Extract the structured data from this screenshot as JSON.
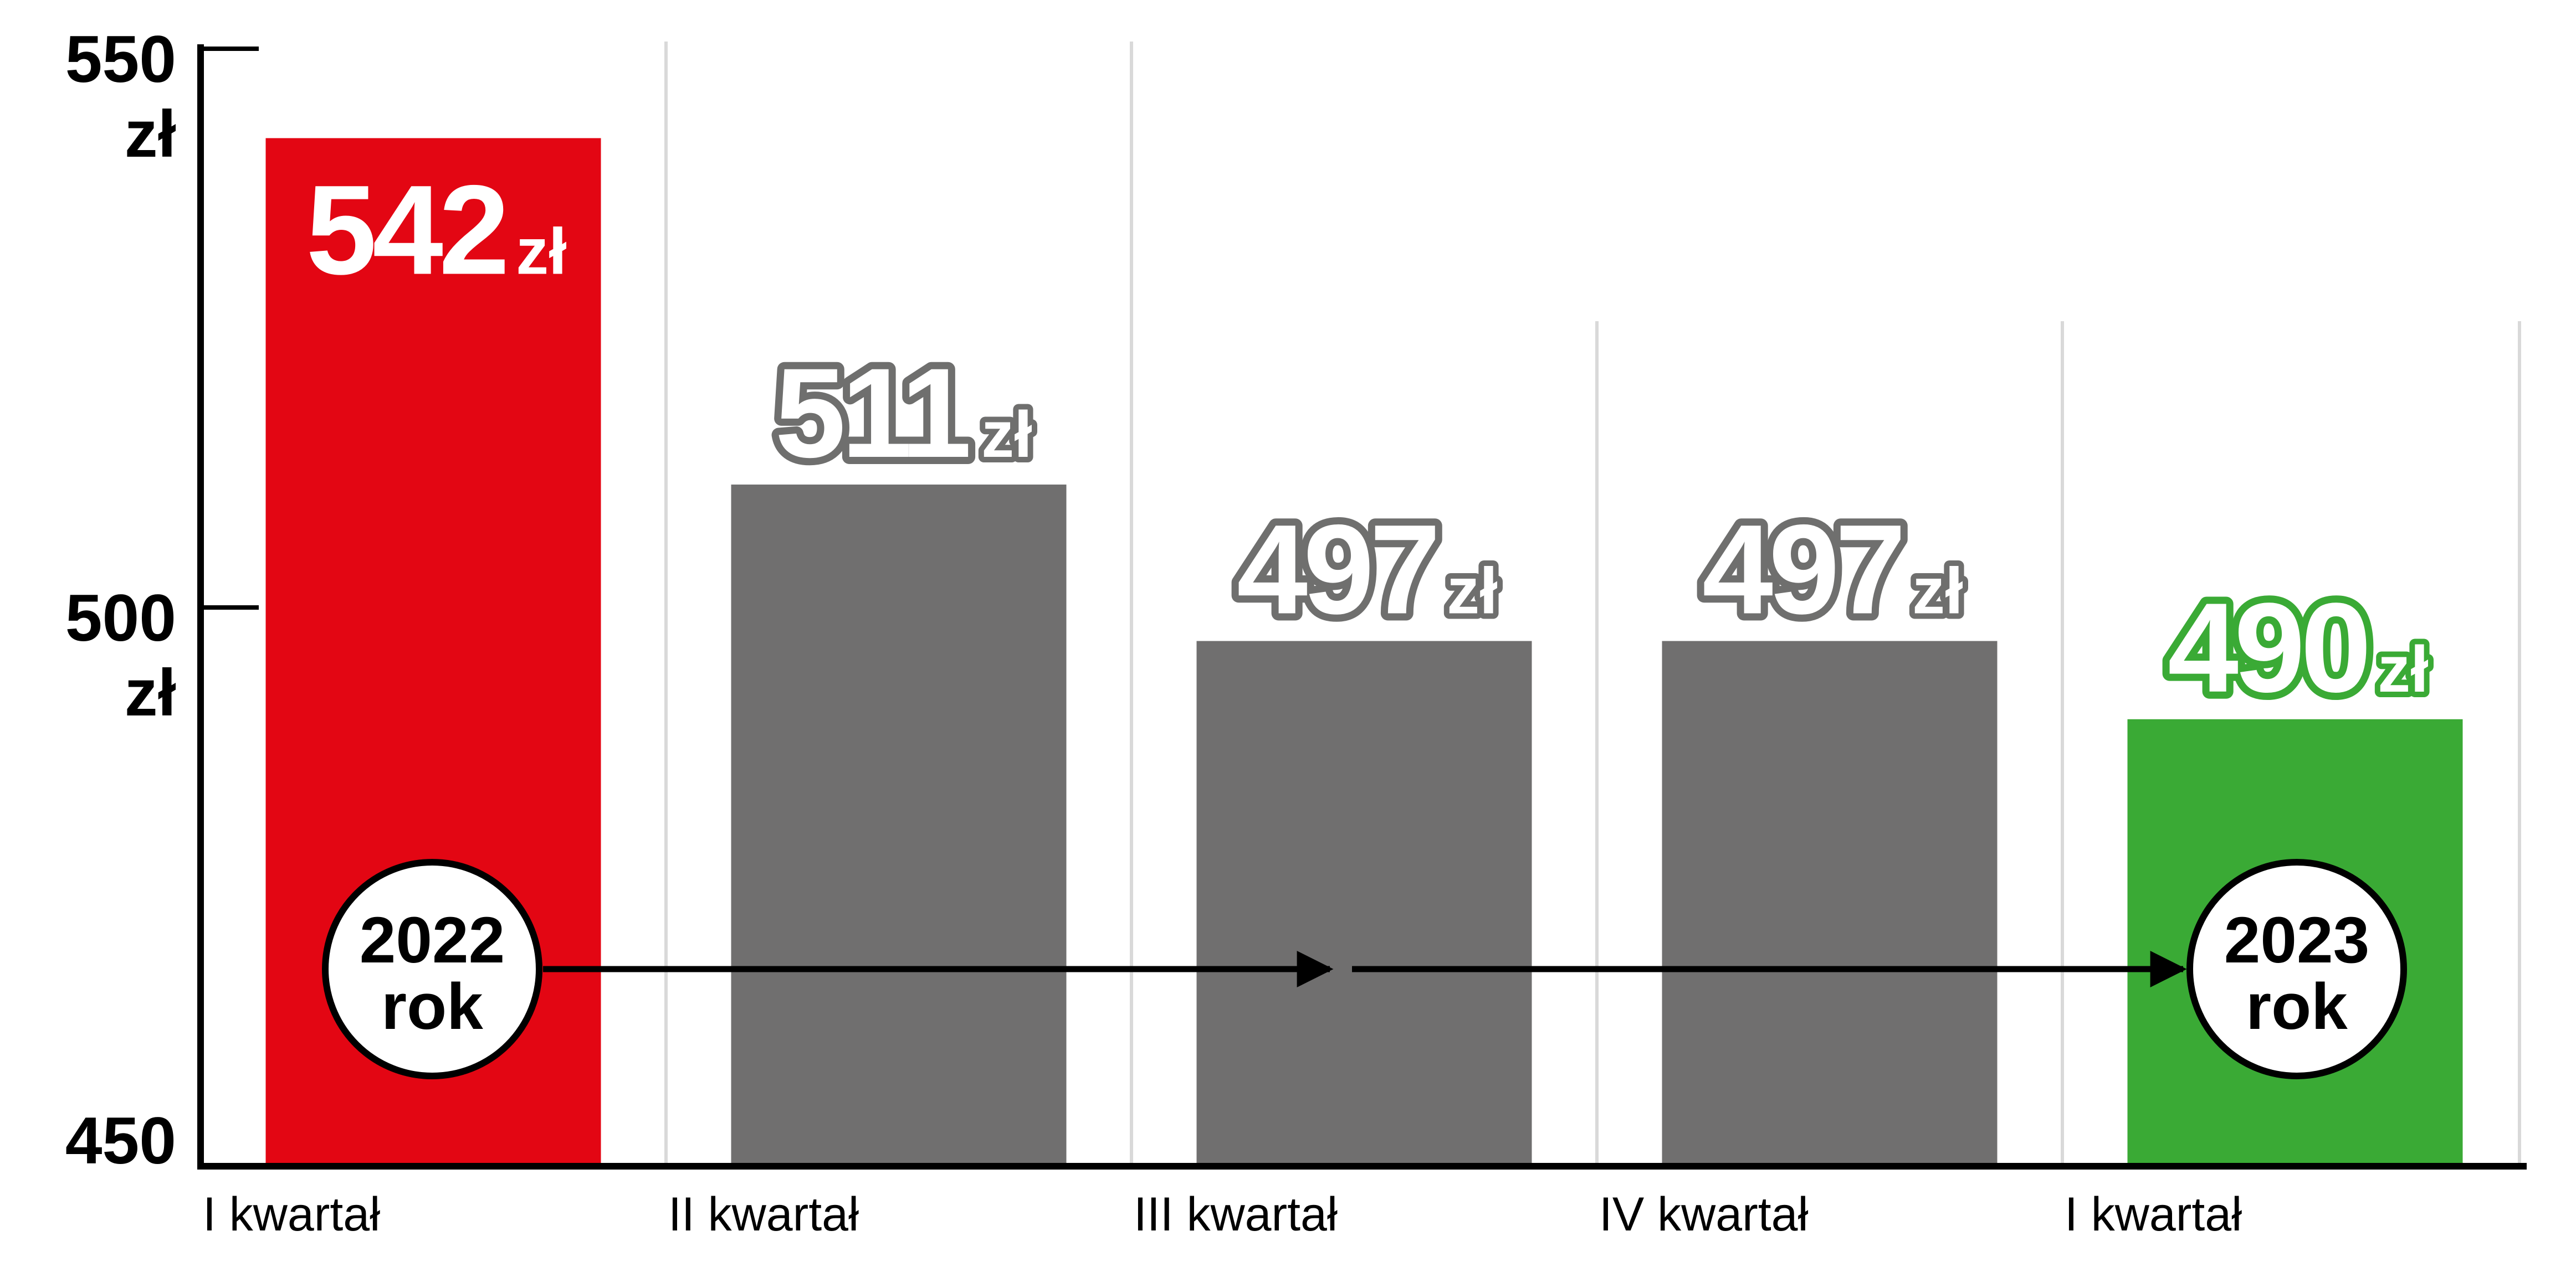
{
  "chart_data": {
    "type": "bar",
    "categories": [
      "I kwartał",
      "II kwartał",
      "III kwartał",
      "IV kwartał",
      "I kwartał"
    ],
    "values": [
      542,
      511,
      497,
      497,
      490
    ],
    "value_unit": "zł",
    "value_labels": [
      "542",
      "511",
      "497",
      "497",
      "490"
    ],
    "bar_colors": [
      "#e30613",
      "#706f6f",
      "#706f6f",
      "#706f6f",
      "#3aaa35"
    ],
    "label_styles": [
      "inside",
      "outline-gray",
      "outline-gray",
      "outline-gray",
      "outline-green"
    ],
    "ylim": [
      450,
      550
    ],
    "yticks": [
      {
        "value": 550,
        "label": "550",
        "unit": "zł"
      },
      {
        "value": 500,
        "label": "500",
        "unit": "zł"
      },
      {
        "value": 450,
        "label": "450",
        "unit": ""
      }
    ],
    "grid": "vertical",
    "years": [
      {
        "label": "2022",
        "sub": "rok",
        "category_index": 0
      },
      {
        "label": "2023",
        "sub": "rok",
        "category_index": 4
      }
    ],
    "colors": {
      "red": "#e30613",
      "gray": "#706f6f",
      "green": "#3aaa35",
      "outline_gray": "#6f6f6e",
      "outline_green": "#3aaa35"
    }
  }
}
